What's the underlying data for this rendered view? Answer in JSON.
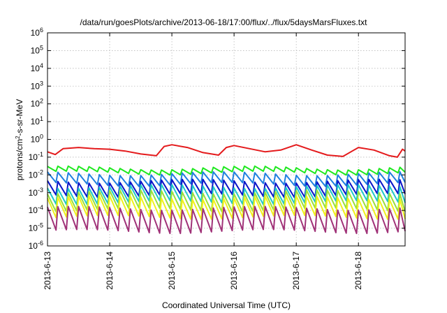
{
  "chart_data": {
    "type": "line",
    "title": "/data/run/goesPlots/archive/2013-06-18/17:00/flux/../flux/5daysMarsFluxes.txt",
    "xlabel": "Coordinated Universal Time (UTC)",
    "ylabel": "protons/cm²-s-sr-MeV",
    "yscale": "log",
    "ylim": [
      1e-06,
      1000000.0
    ],
    "xlim": [
      "2013-06-13",
      "2013-06-18T18:00"
    ],
    "x_ticks": [
      "2013-6-13",
      "2013-6-14",
      "2013-6-15",
      "2013-6-16",
      "2013-6-17",
      "2013-6-18"
    ],
    "y_ticks": [
      {
        "base": "10",
        "exp": "-6"
      },
      {
        "base": "10",
        "exp": "-5"
      },
      {
        "base": "10",
        "exp": "-4"
      },
      {
        "base": "10",
        "exp": "-3"
      },
      {
        "base": "10",
        "exp": "-2"
      },
      {
        "base": "10",
        "exp": "-1"
      },
      {
        "base": "10",
        "exp": "0"
      },
      {
        "base": "10",
        "exp": "1"
      },
      {
        "base": "10",
        "exp": "2"
      },
      {
        "base": "10",
        "exp": "3"
      },
      {
        "base": "10",
        "exp": "4"
      },
      {
        "base": "10",
        "exp": "5"
      },
      {
        "base": "10",
        "exp": "6"
      }
    ],
    "grid": true,
    "legend": "none",
    "series": [
      {
        "color": "#e41a1c",
        "points": [
          [
            "2013-06-13T00:00",
            0.2
          ],
          [
            "2013-06-13T03:00",
            0.14
          ],
          [
            "2013-06-13T06:00",
            0.3
          ],
          [
            "2013-06-13T12:00",
            0.35
          ],
          [
            "2013-06-13T18:00",
            0.3
          ],
          [
            "2013-06-14T00:00",
            0.28
          ],
          [
            "2013-06-14T06:00",
            0.22
          ],
          [
            "2013-06-14T12:00",
            0.15
          ],
          [
            "2013-06-14T18:00",
            0.12
          ],
          [
            "2013-06-14T21:00",
            0.4
          ],
          [
            "2013-06-15T00:00",
            0.5
          ],
          [
            "2013-06-15T06:00",
            0.35
          ],
          [
            "2013-06-15T12:00",
            0.18
          ],
          [
            "2013-06-15T18:00",
            0.13
          ],
          [
            "2013-06-15T21:00",
            0.35
          ],
          [
            "2013-06-16T00:00",
            0.45
          ],
          [
            "2013-06-16T06:00",
            0.3
          ],
          [
            "2013-06-16T12:00",
            0.2
          ],
          [
            "2013-06-16T18:00",
            0.25
          ],
          [
            "2013-06-17T00:00",
            0.5
          ],
          [
            "2013-06-17T06:00",
            0.25
          ],
          [
            "2013-06-17T12:00",
            0.13
          ],
          [
            "2013-06-17T18:00",
            0.11
          ],
          [
            "2013-06-18T00:00",
            0.35
          ],
          [
            "2013-06-18T06:00",
            0.25
          ],
          [
            "2013-06-18T12:00",
            0.12
          ],
          [
            "2013-06-18T15:00",
            0.1
          ],
          [
            "2013-06-18T17:00",
            0.28
          ],
          [
            "2013-06-18T18:00",
            0.22
          ]
        ]
      },
      {
        "color": "#1ee81e",
        "center": 0.018,
        "amplitude": 0.14
      },
      {
        "color": "#1f7fe0",
        "center": 0.006,
        "amplitude": 0.3
      },
      {
        "color": "#0a14c8",
        "center": 0.0018,
        "amplitude": 0.4
      },
      {
        "color": "#1ec8c8",
        "center": 0.0008,
        "amplitude": 0.45
      },
      {
        "color": "#9ae03a",
        "center": 0.00035,
        "amplitude": 0.5
      },
      {
        "color": "#f0f01e",
        "center": 0.00015,
        "amplitude": 0.55
      },
      {
        "color": "#a03278",
        "center": 3e-05,
        "amplitude": 0.65
      }
    ]
  }
}
